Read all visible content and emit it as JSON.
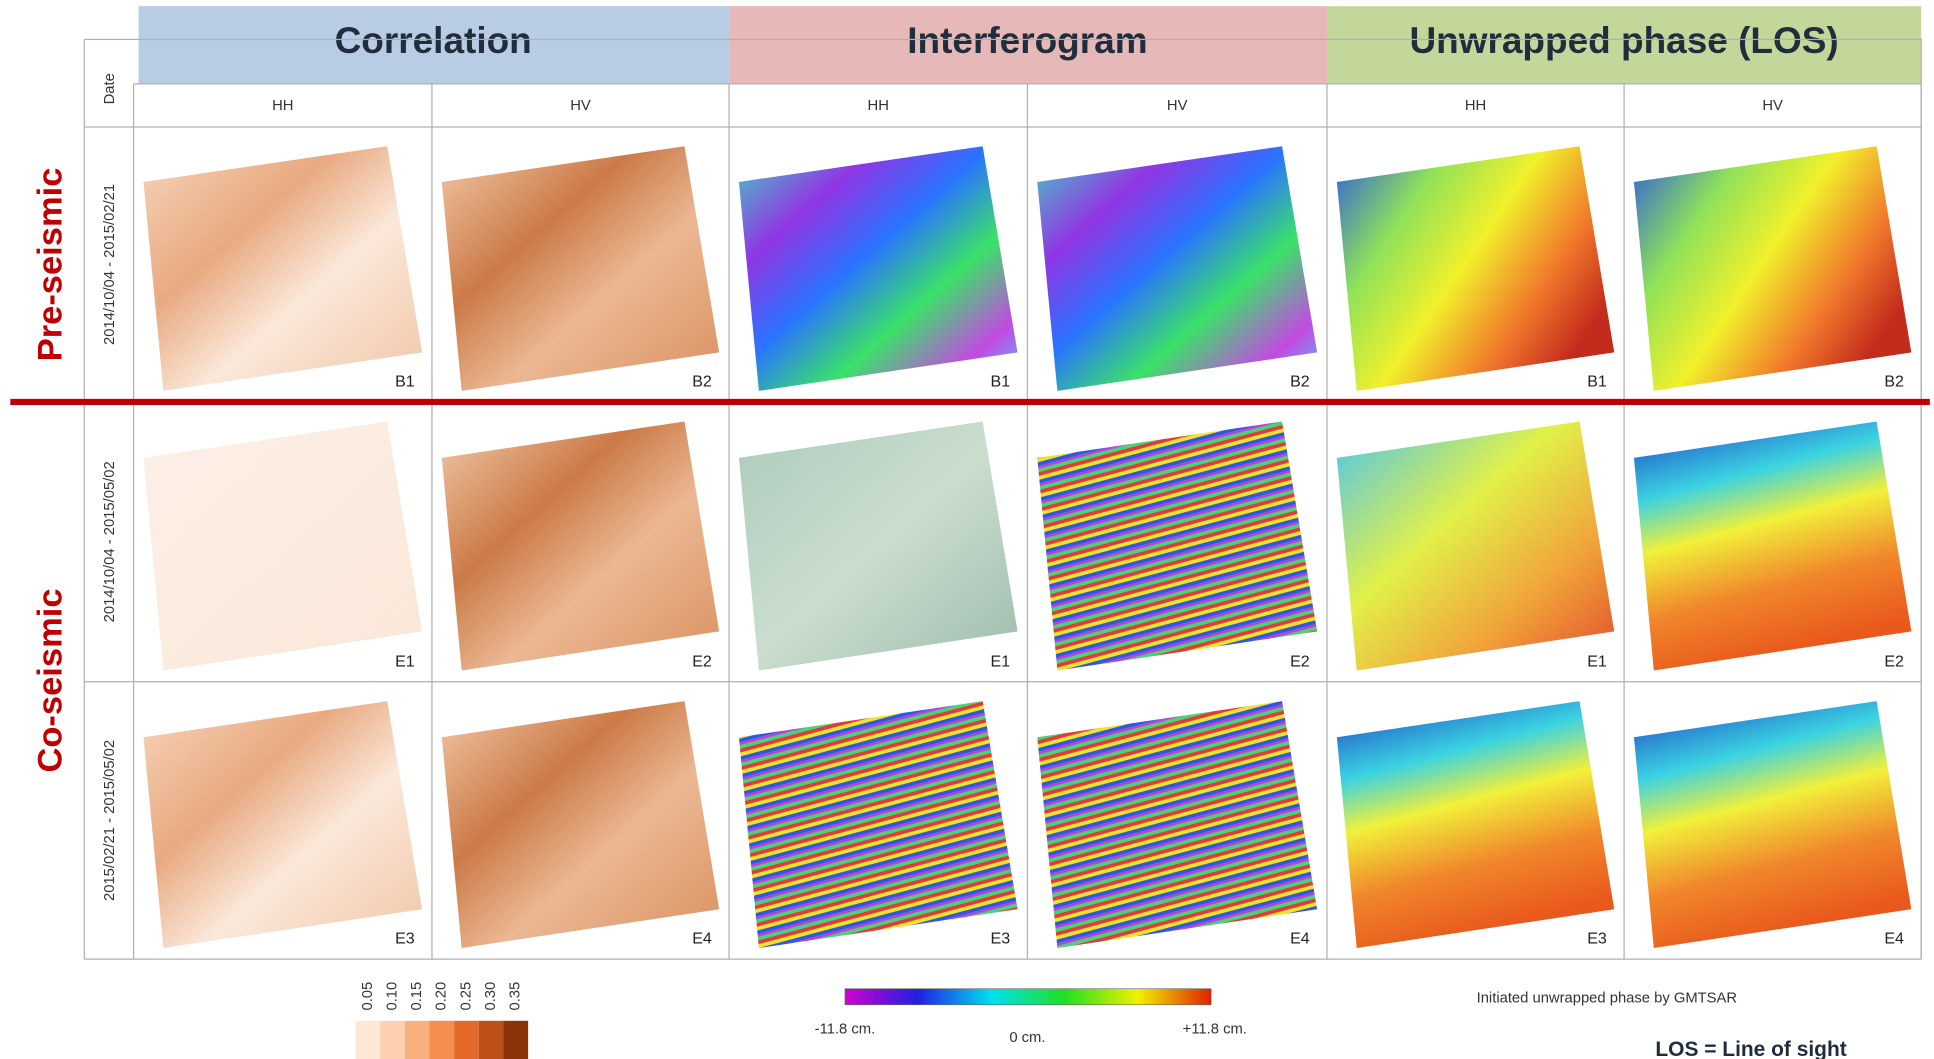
{
  "header": {
    "sections": [
      "Correlation",
      "Interferogram",
      "Unwrapped phase (LOS)"
    ],
    "polarizations": [
      "HH",
      "HV",
      "HH",
      "HV",
      "HH",
      "HV"
    ],
    "date_label": "Date"
  },
  "groups": [
    {
      "label": "Pre-seismic",
      "rows": [
        {
          "date": "2014/10/04 - 2015/02/21",
          "tiles": [
            "B1",
            "B2",
            "B1",
            "B2",
            "B1",
            "B2"
          ]
        }
      ]
    },
    {
      "label": "Co-seismic",
      "rows": [
        {
          "date": "2014/10/04 - 2015/05/02",
          "tiles": [
            "E1",
            "E2",
            "E1",
            "E2",
            "E1",
            "E2"
          ]
        },
        {
          "date": "2015/02/21 - 2015/05/02",
          "tiles": [
            "E3",
            "E4",
            "E3",
            "E4",
            "E3",
            "E4"
          ]
        }
      ]
    }
  ],
  "legend": {
    "correlation_scale": [
      "0.05",
      "0.10",
      "0.15",
      "0.20",
      "0.25",
      "0.30",
      "0.35"
    ],
    "phase_labels": [
      "-11.8 cm.",
      "0 cm.",
      "+11.8 cm."
    ],
    "note": "Initiated unwrapped phase by GMTSAR",
    "footnote": "LOS = Line of sight"
  }
}
